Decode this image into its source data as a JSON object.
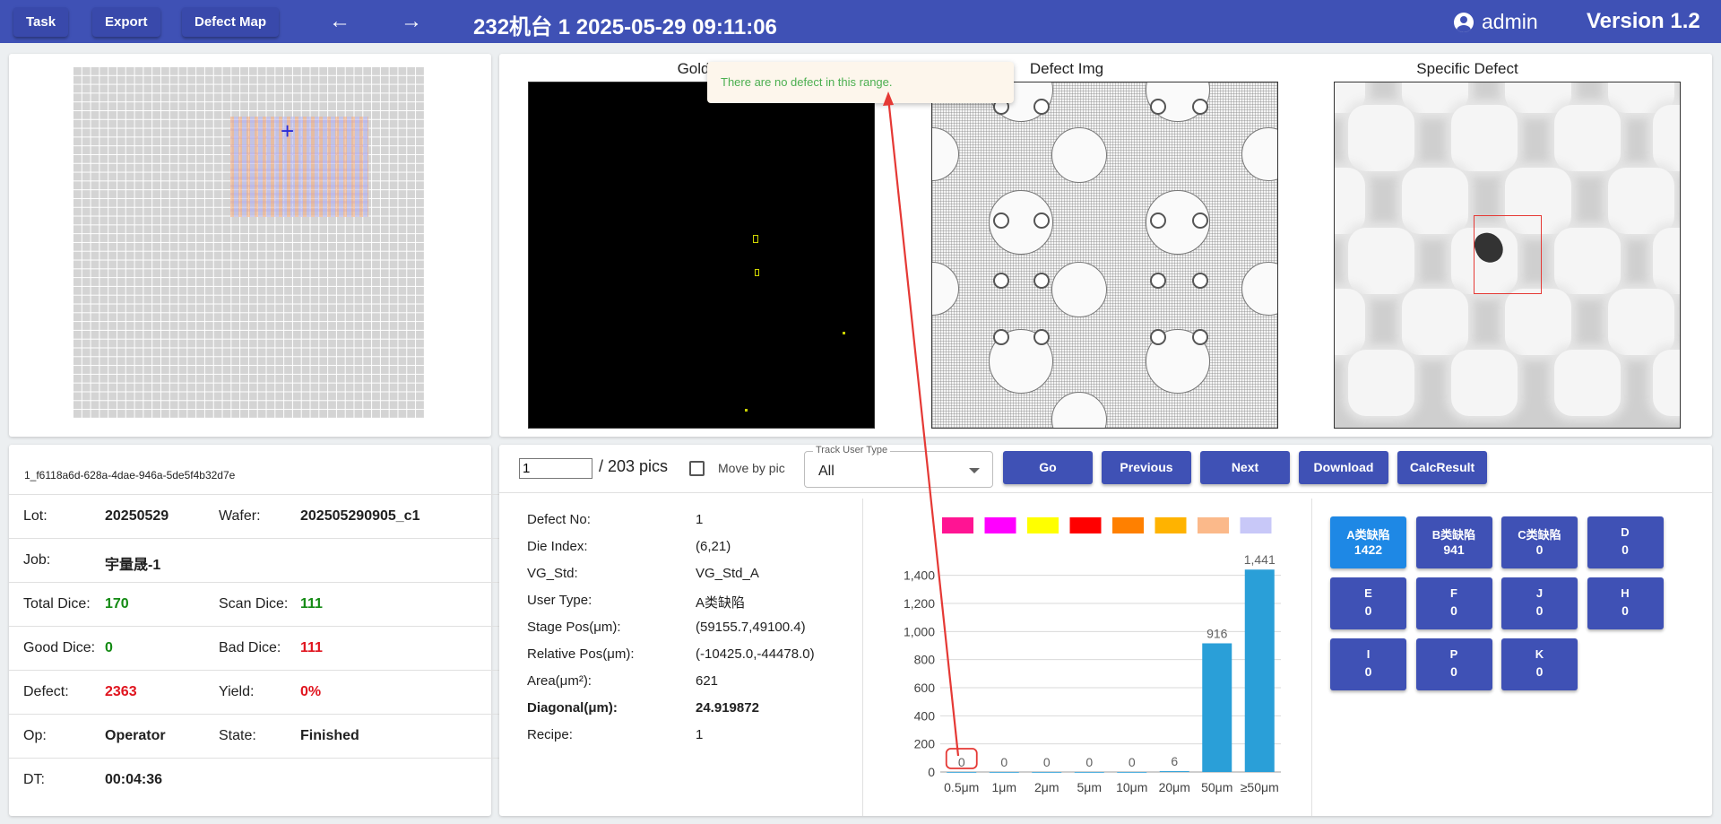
{
  "toolbar": {
    "task_label": "Task",
    "export_label": "Export",
    "defect_map_label": "Defect Map",
    "back_icon": "arrow-left-icon",
    "forward_icon": "arrow-right-icon",
    "title": "232机台   1   2025-05-29 09:11:06",
    "user": "admin",
    "version": "Version 1.2"
  },
  "images": {
    "golden_title": "Golden",
    "defect_title": "Defect Img",
    "specific_title": "Specific Defect"
  },
  "toast": {
    "message": "There are no defect in this range."
  },
  "info": {
    "id": "1_f6118a6d-628a-4dae-946a-5de5f4b32d7e",
    "lot_label": "Lot:",
    "lot": "20250529",
    "wafer_label": "Wafer:",
    "wafer": "202505290905_c1",
    "job_label": "Job:",
    "job": "宇量晟-1",
    "total_dice_label": "Total Dice:",
    "total_dice": "170",
    "scan_dice_label": "Scan Dice:",
    "scan_dice": "111",
    "good_dice_label": "Good Dice:",
    "good_dice": "0",
    "bad_dice_label": "Bad Dice:",
    "bad_dice": "111",
    "defect_label": "Defect:",
    "defect": "2363",
    "yield_label": "Yield:",
    "yield": "0%",
    "op_label": "Op:",
    "op": "Operator",
    "state_label": "State:",
    "state": "Finished",
    "dt_label": "DT:",
    "dt": "00:04:36",
    "colors": {
      "green": "#138a13",
      "red": "#e0141e"
    }
  },
  "controls": {
    "pic_value": "1",
    "pic_total": "/ 203 pics",
    "move_by_pic_label": "Move by pic",
    "move_by_pic_checked": false,
    "track_user_type_label": "Track User Type",
    "track_user_type_value": "All",
    "go_label": "Go",
    "previous_label": "Previous",
    "next_label": "Next",
    "download_label": "Download",
    "calc_label": "CalcResult"
  },
  "defect_detail": [
    {
      "label": "Defect No:",
      "value": "1",
      "bold": false
    },
    {
      "label": "Die Index:",
      "value": "(6,21)",
      "bold": false
    },
    {
      "label": "VG_Std:",
      "value": "VG_Std_A",
      "bold": false
    },
    {
      "label": "User Type:",
      "value": "A类缺陷",
      "bold": false
    },
    {
      "label": "Stage Pos(μm):",
      "value": "(59155.7,49100.4)",
      "bold": false
    },
    {
      "label": "Relative Pos(μm):",
      "value": "(-10425.0,-44478.0)",
      "bold": false
    },
    {
      "label": "Area(μm²):",
      "value": "621",
      "bold": false
    },
    {
      "label": "Diagonal(μm):",
      "value": "24.919872",
      "bold": true
    },
    {
      "label": "Recipe:",
      "value": "1",
      "bold": false
    }
  ],
  "chart_data": {
    "type": "bar",
    "categories": [
      "0.5μm",
      "1μm",
      "2μm",
      "5μm",
      "10μm",
      "20μm",
      "50μm",
      "≥50μm"
    ],
    "values": [
      0,
      0,
      0,
      0,
      0,
      6,
      916,
      1441
    ],
    "value_labels": [
      "0",
      "0",
      "0",
      "0",
      "0",
      "6",
      "916",
      "1,441"
    ],
    "yticks": [
      "0",
      "200",
      "400",
      "600",
      "800",
      "1,000",
      "1,200",
      "1,400"
    ],
    "ylim": [
      0,
      1500
    ],
    "grid": true,
    "bar_color": "#2a9fd8",
    "legend_swatches": [
      "#ff1493",
      "#ff00ff",
      "#ffff00",
      "#ff0000",
      "#ff8000",
      "#ffb300",
      "#fbb98a",
      "#c8c8f8"
    ],
    "highlight_category": "0.5μm",
    "highlight_color": "#e53935"
  },
  "defect_types": [
    {
      "name": "A类缺陷",
      "count": "1422",
      "active": true
    },
    {
      "name": "B类缺陷",
      "count": "941",
      "active": false
    },
    {
      "name": "C类缺陷",
      "count": "0",
      "active": false
    },
    {
      "name": "D",
      "count": "0",
      "active": false
    },
    {
      "name": "E",
      "count": "0",
      "active": false
    },
    {
      "name": "F",
      "count": "0",
      "active": false
    },
    {
      "name": "J",
      "count": "0",
      "active": false
    },
    {
      "name": "H",
      "count": "0",
      "active": false
    },
    {
      "name": "I",
      "count": "0",
      "active": false
    },
    {
      "name": "P",
      "count": "0",
      "active": false
    },
    {
      "name": "K",
      "count": "0",
      "active": false
    }
  ],
  "colors": {
    "primary": "#3f51b5",
    "active": "#1e88e5",
    "toast_text": "#4caf50",
    "toast_bg": "#fdf6ec",
    "annotation": "#e53935"
  }
}
